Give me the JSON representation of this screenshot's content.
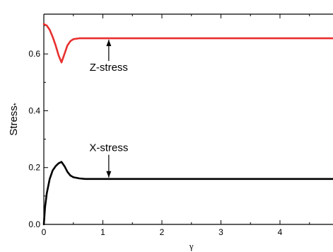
{
  "chart_data": {
    "type": "line",
    "xlabel": "γ",
    "ylabel": "Stress",
    "ylabel_suffix": "*",
    "xlim": [
      0,
      5
    ],
    "ylim": [
      0,
      0.74
    ],
    "x_ticks": [
      0,
      1,
      2,
      3,
      4
    ],
    "x_tick_labels": [
      "0",
      "1",
      "2",
      "3",
      "4"
    ],
    "y_ticks": [
      0,
      0.2,
      0.4,
      0.6
    ],
    "y_tick_labels": [
      "0.0",
      "0.2",
      "0.4",
      "0.6"
    ],
    "grid": false,
    "legend": "none",
    "series": [
      {
        "color": "#e8302e",
        "x": [
          0,
          0.05,
          0.1,
          0.15,
          0.2,
          0.25,
          0.3,
          0.35,
          0.4,
          0.45,
          0.5,
          0.6,
          0.7,
          0.8,
          1.0,
          1.5,
          2,
          3,
          4,
          5
        ],
        "y": [
          0.705,
          0.7,
          0.685,
          0.66,
          0.63,
          0.595,
          0.57,
          0.6,
          0.63,
          0.645,
          0.652,
          0.655,
          0.655,
          0.655,
          0.655,
          0.655,
          0.655,
          0.655,
          0.655,
          0.655
        ]
      },
      {
        "color": "#000000",
        "x": [
          0,
          0.02,
          0.05,
          0.1,
          0.15,
          0.2,
          0.25,
          0.3,
          0.35,
          0.4,
          0.45,
          0.5,
          0.6,
          0.7,
          0.8,
          1.0,
          1.5,
          2,
          3,
          4,
          5
        ],
        "y": [
          0.0,
          0.06,
          0.11,
          0.16,
          0.19,
          0.205,
          0.215,
          0.22,
          0.205,
          0.185,
          0.172,
          0.166,
          0.162,
          0.16,
          0.16,
          0.16,
          0.16,
          0.16,
          0.16,
          0.16,
          0.16
        ]
      }
    ],
    "annotations": [
      {
        "text": "Z-stress",
        "arrow_from": [
          1.1,
          0.575
        ],
        "arrow_to": [
          1.1,
          0.65
        ]
      },
      {
        "text": "X-stress",
        "arrow_from": [
          1.1,
          0.245
        ],
        "arrow_to": [
          1.1,
          0.165
        ]
      }
    ]
  }
}
